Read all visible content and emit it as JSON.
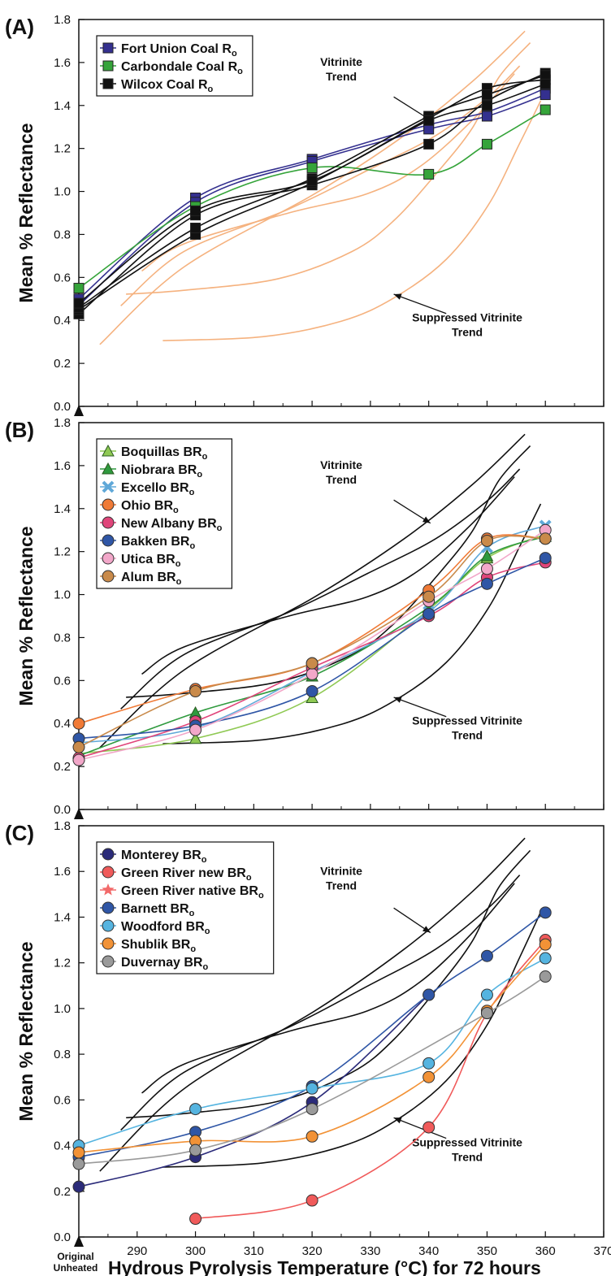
{
  "chart_data": [
    {
      "type": "line",
      "panel_label": "(A)",
      "ylabel": "Mean % Reflectance",
      "ylim": [
        0.0,
        1.8
      ],
      "yticks": [
        "0.0",
        "0.2",
        "0.4",
        "0.6",
        "0.8",
        "1.0",
        "1.2",
        "1.4",
        "1.6",
        "1.8"
      ],
      "legend_placement": "top-left",
      "annotations": [
        {
          "lines": [
            "Vitrinite",
            "Trend"
          ]
        },
        {
          "lines": [
            "Suppressed Vitrinite",
            "Trend"
          ]
        }
      ],
      "trend_color": "#f5b27f",
      "series": [
        {
          "name": "Fort Union Coal R",
          "sub": "o",
          "color": "#34308f",
          "marker": "square",
          "show_in_legend": true,
          "x": [
            280,
            300,
            320,
            340,
            350,
            360
          ],
          "y": [
            0.5,
            0.97,
            1.15,
            1.31,
            1.37,
            1.48
          ]
        },
        {
          "color": "#34308f",
          "marker": "square",
          "show_in_legend": false,
          "x": [
            280,
            300,
            320,
            340,
            350,
            360
          ],
          "y": [
            0.47,
            0.95,
            1.14,
            1.29,
            1.35,
            1.45
          ]
        },
        {
          "name": "Carbondale Coal R",
          "sub": "o",
          "color": "#35a43a",
          "marker": "square",
          "show_in_legend": true,
          "x": [
            280,
            300,
            320,
            340,
            350,
            360
          ],
          "y": [
            0.55,
            0.93,
            1.11,
            1.08,
            1.22,
            1.38
          ]
        },
        {
          "name": "Wilcox Coal R",
          "sub": "o",
          "color": "#111111",
          "marker": "square",
          "show_in_legend": true,
          "x": [
            280,
            300,
            320,
            340,
            350,
            360
          ],
          "y": [
            0.43,
            0.89,
            1.03,
            1.22,
            1.42,
            1.55
          ]
        },
        {
          "color": "#111111",
          "marker": "square",
          "show_in_legend": false,
          "x": [
            280,
            300,
            320,
            340,
            350,
            360
          ],
          "y": [
            0.45,
            0.8,
            1.04,
            1.34,
            1.48,
            1.52
          ]
        },
        {
          "color": "#111111",
          "marker": "square",
          "show_in_legend": false,
          "x": [
            280,
            300,
            320,
            340,
            350,
            360
          ],
          "y": [
            0.46,
            0.83,
            1.06,
            1.35,
            1.45,
            1.54
          ]
        },
        {
          "color": "#111111",
          "marker": "square",
          "show_in_legend": false,
          "x": [
            280,
            300,
            320,
            340,
            350,
            360
          ],
          "y": [
            0.48,
            0.91,
            1.05,
            1.33,
            1.4,
            1.5
          ]
        }
      ]
    },
    {
      "type": "line",
      "panel_label": "(B)",
      "ylabel": "Mean % Reflectance",
      "ylim": [
        0.0,
        1.8
      ],
      "yticks": [
        "0.0",
        "0.2",
        "0.4",
        "0.6",
        "0.8",
        "1.0",
        "1.2",
        "1.4",
        "1.6",
        "1.8"
      ],
      "legend_placement": "top-left",
      "annotations": [
        {
          "lines": [
            "Vitrinite",
            "Trend"
          ]
        },
        {
          "lines": [
            "Suppressed Vitrinite",
            "Trend"
          ]
        }
      ],
      "trend_color": "#111111",
      "series": [
        {
          "name": "Boquillas BR",
          "sub": "o",
          "color": "#8fc953",
          "marker": "triangle",
          "show_in_legend": true,
          "x": [
            280,
            300,
            320,
            340,
            350,
            360
          ],
          "y": [
            0.26,
            0.33,
            0.52,
            0.93,
            1.17,
            1.28
          ]
        },
        {
          "name": "Niobrara BR",
          "sub": "o",
          "color": "#2f9a3e",
          "marker": "triangle",
          "show_in_legend": true,
          "x": [
            280,
            300,
            320,
            340,
            350,
            360
          ],
          "y": [
            0.25,
            0.45,
            0.62,
            0.94,
            1.18,
            1.27
          ]
        },
        {
          "name": "Excello BR",
          "sub": "o",
          "color": "#5fa8d8",
          "marker": "x",
          "show_in_legend": true,
          "x": [
            280,
            300,
            320,
            340,
            350,
            360
          ],
          "y": [
            0.31,
            0.38,
            0.64,
            0.92,
            1.22,
            1.32
          ]
        },
        {
          "name": "Ohio BR",
          "sub": "o",
          "color": "#f07a36",
          "marker": "circle",
          "show_in_legend": true,
          "x": [
            280,
            300,
            320,
            340,
            350,
            360
          ],
          "y": [
            0.4,
            0.56,
            0.68,
            1.02,
            1.26,
            1.26
          ]
        },
        {
          "name": "New Albany BR",
          "sub": "o",
          "color": "#e0457a",
          "marker": "circle",
          "show_in_legend": true,
          "x": [
            280,
            300,
            320,
            340,
            350,
            360
          ],
          "y": [
            0.24,
            0.41,
            0.66,
            0.9,
            1.08,
            1.15
          ]
        },
        {
          "name": "Bakken BR",
          "sub": "o",
          "color": "#2f56a6",
          "marker": "circle",
          "show_in_legend": true,
          "x": [
            280,
            300,
            320,
            340,
            350,
            360
          ],
          "y": [
            0.33,
            0.39,
            0.55,
            0.91,
            1.05,
            1.17
          ]
        },
        {
          "name": "Utica BR",
          "sub": "o",
          "color": "#f2a7c9",
          "marker": "circle",
          "show_in_legend": true,
          "x": [
            280,
            300,
            320,
            340,
            350,
            360
          ],
          "y": [
            0.23,
            0.37,
            0.63,
            0.97,
            1.12,
            1.3
          ]
        },
        {
          "name": "Alum BR",
          "sub": "o",
          "color": "#c98a4a",
          "marker": "circle",
          "show_in_legend": true,
          "x": [
            280,
            300,
            320,
            340,
            350,
            360
          ],
          "y": [
            0.29,
            0.55,
            0.68,
            0.99,
            1.25,
            1.26
          ]
        }
      ]
    },
    {
      "type": "line",
      "panel_label": "(C)",
      "ylabel": "Mean % Reflectance",
      "ylim": [
        0.0,
        1.8
      ],
      "yticks": [
        "0.0",
        "0.2",
        "0.4",
        "0.6",
        "0.8",
        "1.0",
        "1.2",
        "1.4",
        "1.6",
        "1.8"
      ],
      "legend_placement": "top-left",
      "annotations": [
        {
          "lines": [
            "Vitrinite",
            "Trend"
          ]
        },
        {
          "lines": [
            "Suppressed Vitrinite",
            "Trend"
          ]
        }
      ],
      "trend_color": "#111111",
      "xlabel": "Hydrous Pyrolysis Temperature (°C) for 72 hours",
      "xlim": [
        280,
        370
      ],
      "xticks": [
        "290",
        "300",
        "310",
        "320",
        "330",
        "340",
        "350",
        "360",
        "370"
      ],
      "x_origin_label": [
        "Original",
        "Unheated"
      ],
      "series": [
        {
          "name": "Monterey BR",
          "sub": "o",
          "color": "#2b2b7a",
          "marker": "circle",
          "show_in_legend": true,
          "x": [
            280,
            300,
            320,
            340
          ],
          "y": [
            0.22,
            0.35,
            0.59,
            1.06
          ]
        },
        {
          "name": "Green River new BR",
          "sub": "o",
          "color": "#f05a5a",
          "marker": "circle",
          "show_in_legend": true,
          "x": [
            300,
            320,
            340,
            350,
            360
          ],
          "y": [
            0.08,
            0.16,
            0.48,
            0.98,
            1.3
          ]
        },
        {
          "name": "Green River native BR",
          "sub": "o",
          "color": "#f26a6a",
          "marker": "star",
          "show_in_legend": true,
          "x": [
            280
          ],
          "y": [
            0.33
          ]
        },
        {
          "name": "Barnett BR",
          "sub": "o",
          "color": "#2f56a6",
          "marker": "circle",
          "show_in_legend": true,
          "x": [
            280,
            300,
            320,
            340,
            350,
            360
          ],
          "y": [
            0.35,
            0.46,
            0.66,
            1.06,
            1.23,
            1.42
          ]
        },
        {
          "name": "Woodford BR",
          "sub": "o",
          "color": "#55b4e0",
          "marker": "circle",
          "show_in_legend": true,
          "x": [
            280,
            300,
            320,
            340,
            350,
            360
          ],
          "y": [
            0.4,
            0.56,
            0.65,
            0.76,
            1.06,
            1.22
          ]
        },
        {
          "name": "Shublik BR",
          "sub": "o",
          "color": "#f29236",
          "marker": "circle",
          "show_in_legend": true,
          "x": [
            280,
            300,
            320,
            340,
            350,
            360
          ],
          "y": [
            0.37,
            0.42,
            0.44,
            0.7,
            0.99,
            1.28
          ]
        },
        {
          "name": "Duvernay BR",
          "sub": "o",
          "color": "#9a9a9a",
          "marker": "circle",
          "show_in_legend": true,
          "x": [
            280,
            300,
            320,
            350,
            360
          ],
          "y": [
            0.32,
            0.38,
            0.56,
            0.98,
            1.14
          ]
        }
      ]
    }
  ]
}
